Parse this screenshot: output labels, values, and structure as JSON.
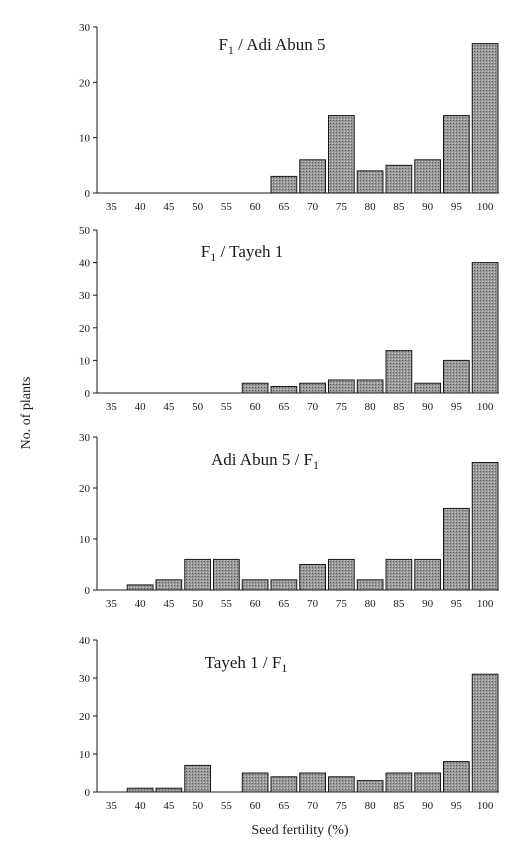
{
  "figure": {
    "ylabel": "No. of plants",
    "xlabel": "Seed fertility (%)",
    "bar_fill": "#9a9a9a",
    "bar_stroke": "#1a1a1a",
    "axis_color": "#1a1a1a"
  },
  "chart_data": [
    {
      "type": "bar",
      "title_main": "F",
      "title_sub": "1",
      "title_rest": " / Adi Abun 5",
      "categories": [
        "35",
        "40",
        "45",
        "50",
        "55",
        "60",
        "65",
        "70",
        "75",
        "80",
        "85",
        "90",
        "95",
        "100"
      ],
      "values": [
        0,
        0,
        0,
        0,
        0,
        0,
        3,
        6,
        14,
        4,
        5,
        6,
        14,
        27
      ],
      "ylim": [
        0,
        30
      ],
      "yticks": [
        "0",
        "10",
        "20",
        "30"
      ],
      "xlabel": "Seed fertility (%)",
      "ylabel": "No. of plants",
      "grid": false
    },
    {
      "type": "bar",
      "title_main": "F",
      "title_sub": "1",
      "title_rest": " / Tayeh 1",
      "categories": [
        "35",
        "40",
        "45",
        "50",
        "55",
        "60",
        "65",
        "70",
        "75",
        "80",
        "85",
        "90",
        "95",
        "100"
      ],
      "values": [
        0,
        0,
        0,
        0,
        0,
        3,
        2,
        3,
        4,
        4,
        13,
        3,
        10,
        40
      ],
      "ylim": [
        0,
        50
      ],
      "yticks": [
        "0",
        "10",
        "20",
        "30",
        "40",
        "50"
      ],
      "xlabel": "Seed fertility (%)",
      "ylabel": "No. of plants",
      "grid": false
    },
    {
      "type": "bar",
      "title_main": "Adi Abun 5  / F",
      "title_sub": "1",
      "title_rest": "",
      "categories": [
        "35",
        "40",
        "45",
        "50",
        "55",
        "60",
        "65",
        "70",
        "75",
        "80",
        "85",
        "90",
        "95",
        "100"
      ],
      "values": [
        0,
        1,
        2,
        6,
        6,
        2,
        2,
        5,
        6,
        2,
        6,
        6,
        16,
        25
      ],
      "ylim": [
        0,
        30
      ],
      "yticks": [
        "0",
        "10",
        "20",
        "30"
      ],
      "xlabel": "Seed fertility (%)",
      "ylabel": "No. of plants",
      "grid": false
    },
    {
      "type": "bar",
      "title_main": "Tayeh 1 / F",
      "title_sub": "1",
      "title_rest": "",
      "categories": [
        "35",
        "40",
        "45",
        "50",
        "55",
        "60",
        "65",
        "70",
        "75",
        "80",
        "85",
        "90",
        "95",
        "100"
      ],
      "values": [
        0,
        1,
        1,
        7,
        0,
        5,
        4,
        5,
        4,
        3,
        5,
        5,
        8,
        31
      ],
      "ylim": [
        0,
        40
      ],
      "yticks": [
        "0",
        "10",
        "20",
        "30",
        "40"
      ],
      "xlabel": "Seed fertility (%)",
      "ylabel": "No. of plants",
      "grid": false
    }
  ]
}
